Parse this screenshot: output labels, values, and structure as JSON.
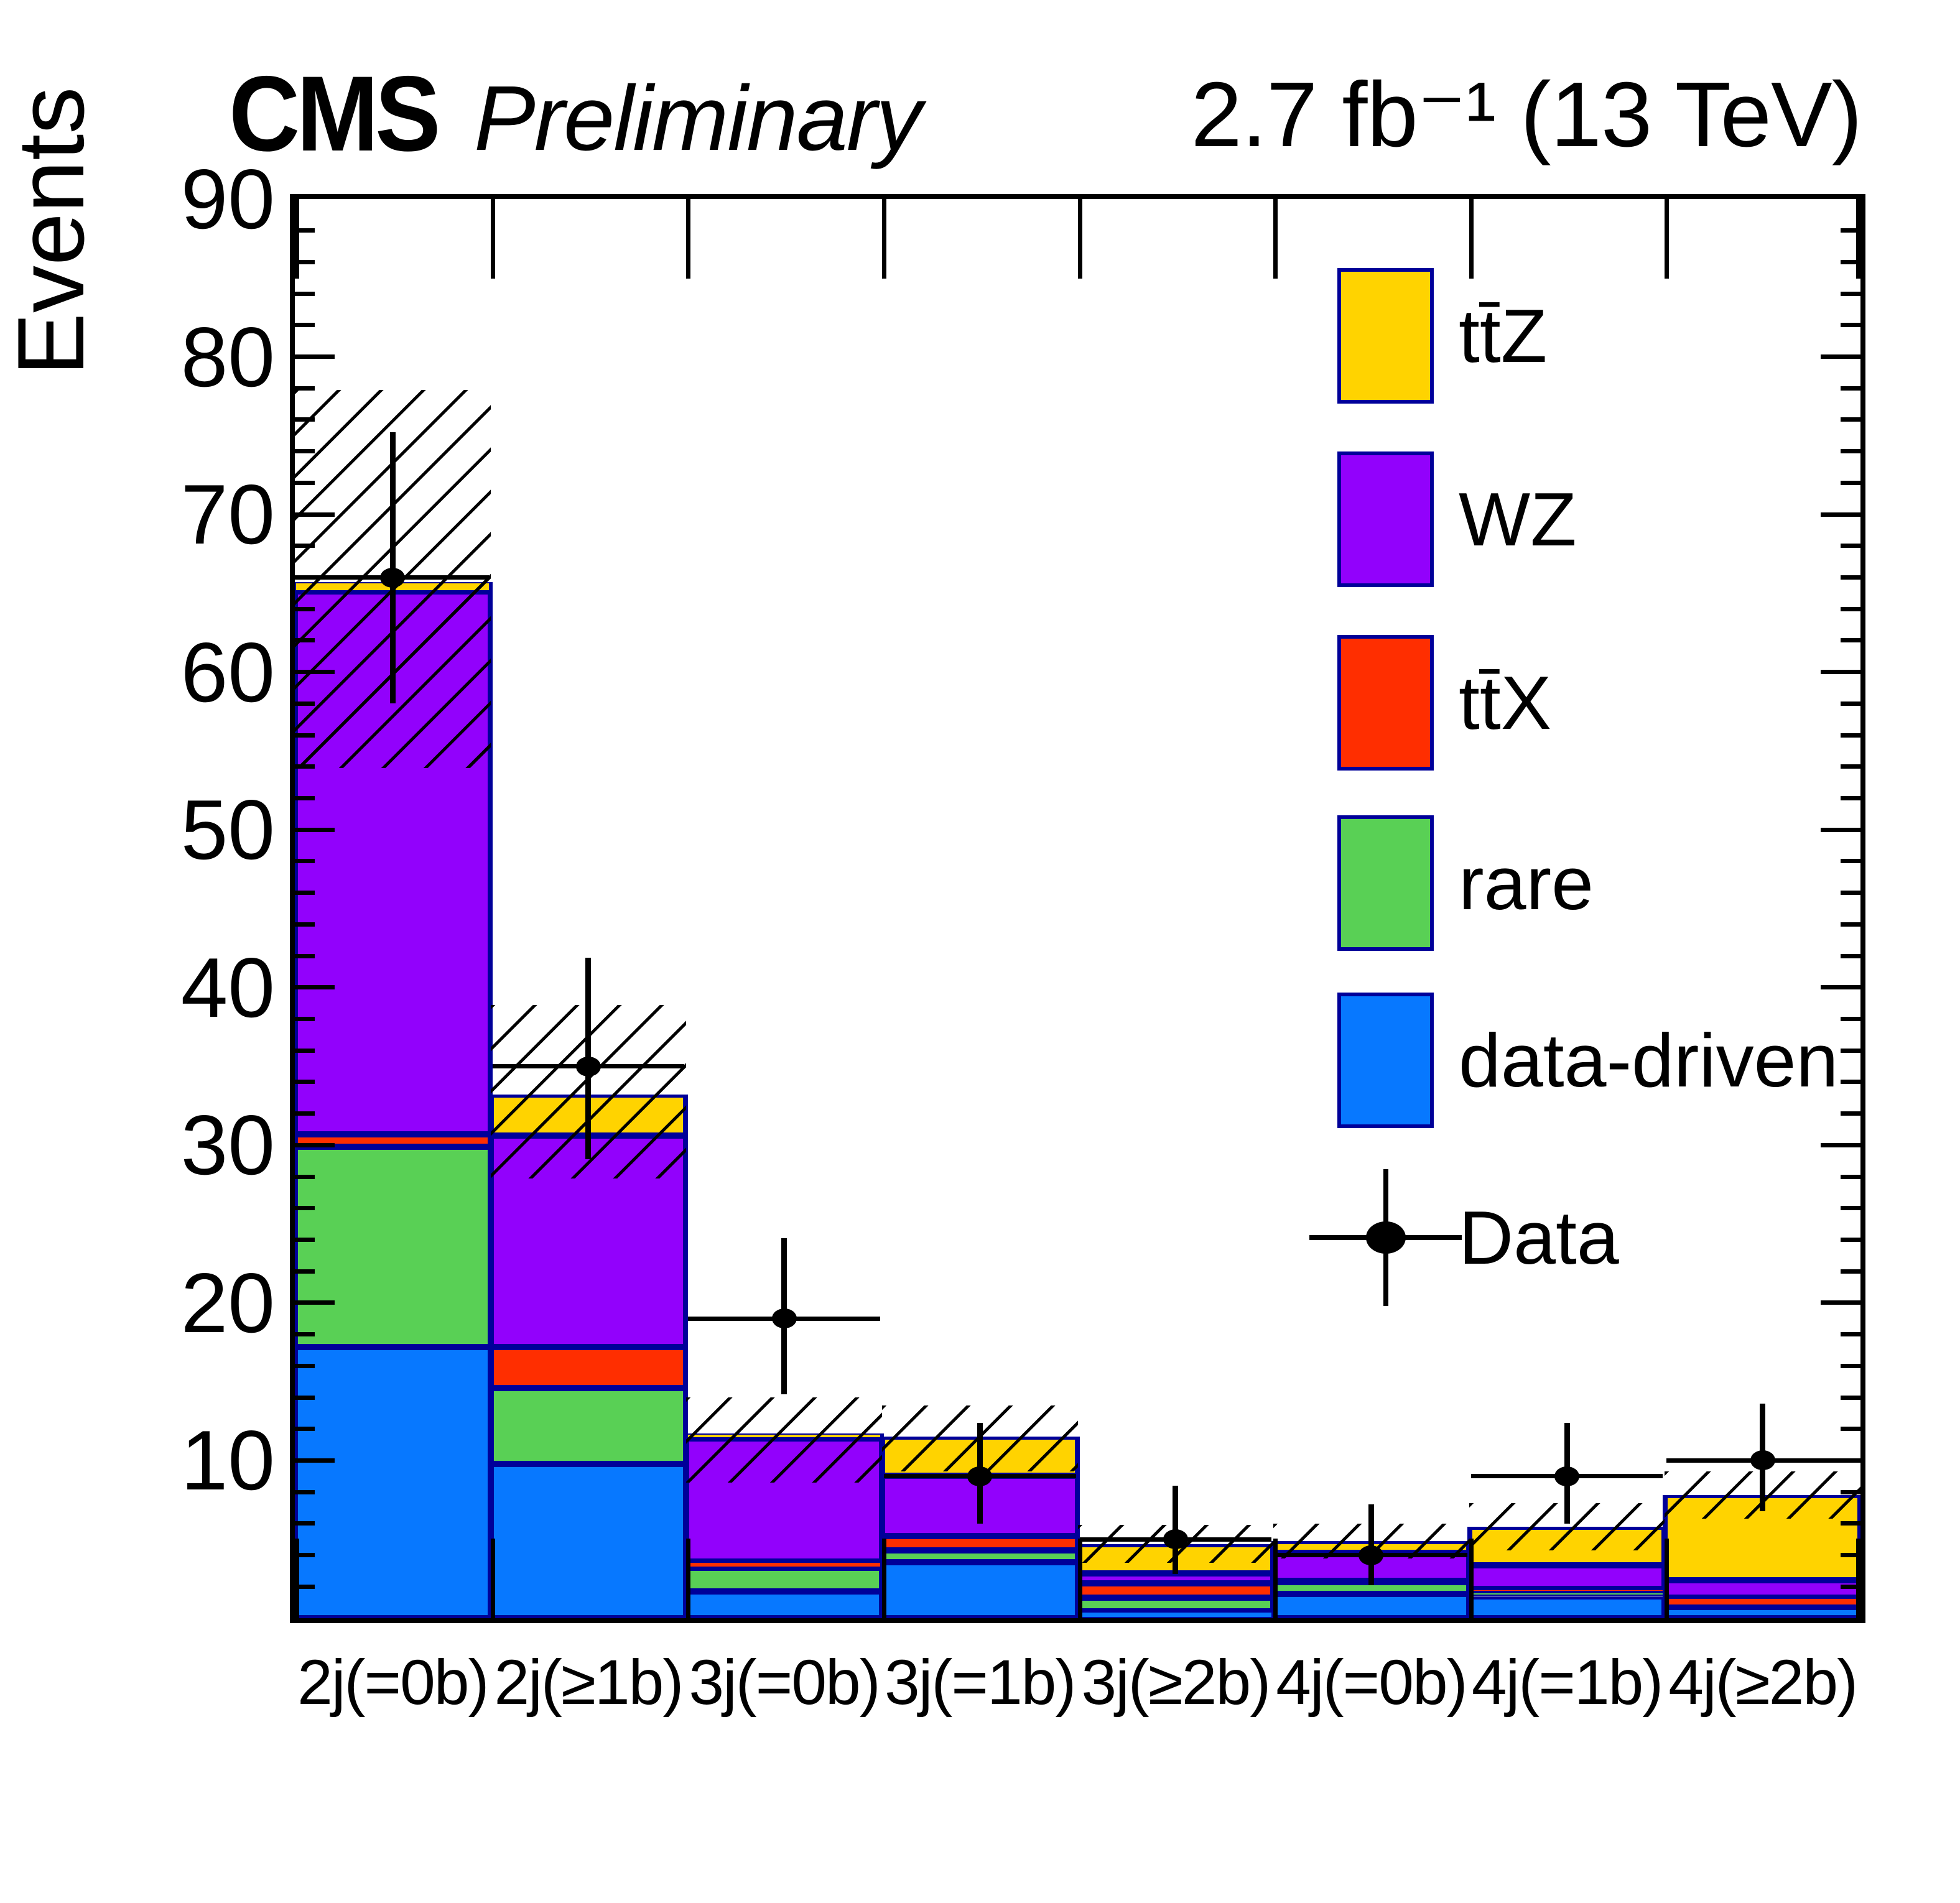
{
  "header": {
    "experiment": "CMS",
    "status": "Preliminary",
    "lumi": "2.7 fb⁻¹ (13 TeV)"
  },
  "axes": {
    "y_title": "Events",
    "y_tick_labels": [
      "10",
      "20",
      "30",
      "40",
      "50",
      "60",
      "70",
      "80",
      "90"
    ]
  },
  "colors": {
    "outline": "#000099",
    "ttZ": "#FFD300",
    "WZ": "#9201FC",
    "ttX": "#FF2E00",
    "rare": "#59D055",
    "data_driven": "#0778FF",
    "data_marker": "#000000"
  },
  "legend": {
    "items": [
      {
        "label": "tt̄Z",
        "type": "box",
        "color": "#FFD300"
      },
      {
        "label": "WZ",
        "type": "box",
        "color": "#9201FC"
      },
      {
        "label": "tt̄X",
        "type": "box",
        "color": "#FF2E00"
      },
      {
        "label": "rare",
        "type": "box",
        "color": "#59D055"
      },
      {
        "label": "data-driven",
        "type": "box",
        "color": "#0778FF"
      },
      {
        "label": "Data",
        "type": "marker",
        "color": "#000000"
      }
    ]
  },
  "chart_data": {
    "type": "bar",
    "stacked": true,
    "title": "CMS Preliminary",
    "subtitle": "2.7 fb⁻¹ (13 TeV)",
    "xlabel": "",
    "ylabel": "Events",
    "ylim": [
      0,
      90
    ],
    "y_major_ticks": [
      10,
      20,
      30,
      40,
      50,
      60,
      70,
      80,
      90
    ],
    "y_minor_step": 2,
    "grid": false,
    "legend_position": "top-right-inside",
    "categories": [
      "2j(=0b)",
      "2j(≥1b)",
      "3j(=0b)",
      "3j(=1b)",
      "3j(≥2b)",
      "4j(=0b)",
      "4j(=1b)",
      "4j(≥2b)"
    ],
    "series": [
      {
        "name": "data-driven",
        "color": "#0778FF",
        "values": [
          17.2,
          9.8,
          1.7,
          3.55,
          0.45,
          1.55,
          1.4,
          0.7
        ]
      },
      {
        "name": "rare",
        "color": "#59D055",
        "values": [
          12.7,
          4.8,
          1.5,
          0.75,
          0.85,
          0.75,
          0.25,
          0.1
        ]
      },
      {
        "name": "tt̄X",
        "color": "#FF2E00",
        "values": [
          0.8,
          2.6,
          0.4,
          0.9,
          0.9,
          0.05,
          0.2,
          0.5
        ]
      },
      {
        "name": "WZ",
        "color": "#9201FC",
        "values": [
          34.4,
          13.4,
          7.8,
          3.85,
          0.65,
          1.8,
          1.5,
          1.1
        ]
      },
      {
        "name": "tt̄Z",
        "color": "#FFD300",
        "values": [
          0.6,
          2.6,
          0.3,
          2.45,
          1.85,
          0.75,
          2.45,
          5.4
        ]
      }
    ],
    "totals": [
      65.7,
      33.2,
      11.7,
      11.5,
      4.7,
      4.9,
      5.8,
      7.8
    ],
    "uncertainty_band": {
      "lo": [
        53.9,
        27.9,
        8.6,
        9.3,
        3.5,
        3.8,
        4.3,
        6.3
      ],
      "hi": [
        77.9,
        38.9,
        14.0,
        13.5,
        5.9,
        6.0,
        7.3,
        9.3
      ]
    },
    "data_points": {
      "name": "Data",
      "y": [
        66,
        35,
        19,
        9,
        5,
        4,
        9,
        10
      ],
      "err_lo": [
        58.0,
        29.1,
        14.2,
        6.0,
        2.8,
        2.1,
        6.0,
        6.8
      ],
      "err_hi": [
        75.2,
        41.9,
        24.1,
        12.4,
        8.4,
        7.2,
        12.4,
        13.6
      ]
    }
  }
}
